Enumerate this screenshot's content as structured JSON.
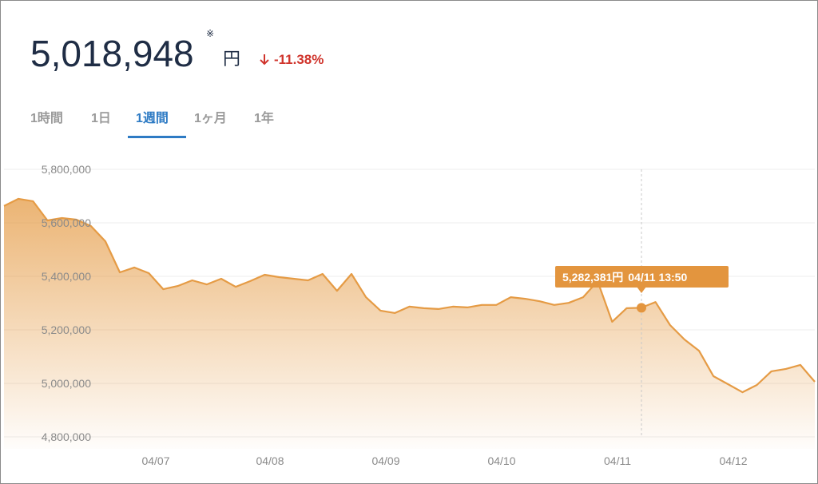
{
  "header": {
    "price": "5,018,948",
    "note": "※",
    "unit": "円",
    "change": "-11.38%"
  },
  "tabs": {
    "items": [
      "1時間",
      "1日",
      "1週間",
      "1ヶ月",
      "1年"
    ],
    "active": 2
  },
  "chart_data": {
    "type": "line",
    "color": "#e59b45",
    "values": [
      5663000,
      5690000,
      5681000,
      5609000,
      5618000,
      5612000,
      5588000,
      5531000,
      5415000,
      5433000,
      5412000,
      5352000,
      5364000,
      5385000,
      5370000,
      5391000,
      5361000,
      5382000,
      5406000,
      5397000,
      5391000,
      5385000,
      5409000,
      5346000,
      5409000,
      5322000,
      5272000,
      5263000,
      5287000,
      5281000,
      5278000,
      5287000,
      5284000,
      5293000,
      5293000,
      5322000,
      5316000,
      5307000,
      5293000,
      5301000,
      5322000,
      5382000,
      5230000,
      5281000,
      5282381,
      5304000,
      5218000,
      5164000,
      5122000,
      5027000,
      4997000,
      4967000,
      4994000,
      5045000,
      5054000,
      5069000,
      5006000
    ],
    "ylim": [
      4800000,
      5800000
    ],
    "yticks": [
      {
        "value": 4800000,
        "label": "4,800,000"
      },
      {
        "value": 5000000,
        "label": "5,000,000"
      },
      {
        "value": 5200000,
        "label": "5,200,000"
      },
      {
        "value": 5400000,
        "label": "5,400,000"
      },
      {
        "value": 5600000,
        "label": "5,600,000"
      },
      {
        "value": 5800000,
        "label": "5,800,000"
      }
    ],
    "x_labels": [
      "04/07",
      "04/08",
      "04/09",
      "04/10",
      "04/11",
      "04/12"
    ],
    "grid": true,
    "tooltip": {
      "value": 5282381,
      "label": "5,282,381円",
      "time": "04/11 13:50"
    }
  }
}
